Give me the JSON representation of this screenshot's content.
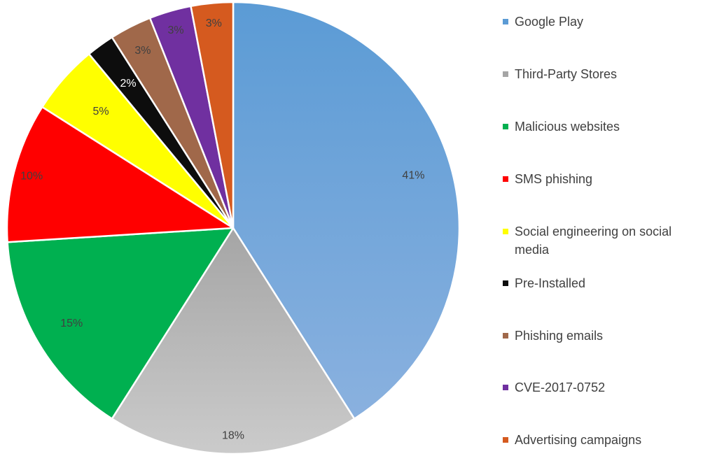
{
  "chart_data": {
    "type": "pie",
    "title": "",
    "legend_position": "right",
    "slices": [
      {
        "label": "Google Play",
        "value": 41,
        "value_label": "41%",
        "color": "#5B9BD5",
        "color_light": "#8AB1DF",
        "label_color": "#404040"
      },
      {
        "label": "Third-Party Stores",
        "value": 18,
        "value_label": "18%",
        "color": "#A5A5A5",
        "color_light": "#CBCBCB",
        "label_color": "#404040"
      },
      {
        "label": "Malicious websites",
        "value": 15,
        "value_label": "15%",
        "color": "#00B050",
        "color_light": "#00B050",
        "label_color": "#404040"
      },
      {
        "label": "SMS phishing",
        "value": 10,
        "value_label": "10%",
        "color": "#FF0000",
        "color_light": "#FF0000",
        "label_color": "#404040"
      },
      {
        "label": "Social engineering on social media",
        "value": 5,
        "value_label": "5%",
        "color": "#FFFF00",
        "color_light": "#FFFF00",
        "label_color": "#404040"
      },
      {
        "label": "Pre-Installed",
        "value": 2,
        "value_label": "2%",
        "color": "#0D0D0D",
        "color_light": "#0D0D0D",
        "label_color": "#FFFFFF"
      },
      {
        "label": "Phishing emails",
        "value": 3,
        "value_label": "3%",
        "color": "#A0684A",
        "color_light": "#A0684A",
        "label_color": "#404040"
      },
      {
        "label": "CVE-2017-0752",
        "value": 3,
        "value_label": "3%",
        "color": "#7030A0",
        "color_light": "#7030A0",
        "label_color": "#404040"
      },
      {
        "label": "Advertising campaigns",
        "value": 3,
        "value_label": "3%",
        "color": "#D55A1F",
        "color_light": "#D55A1F",
        "label_color": "#404040"
      }
    ]
  }
}
